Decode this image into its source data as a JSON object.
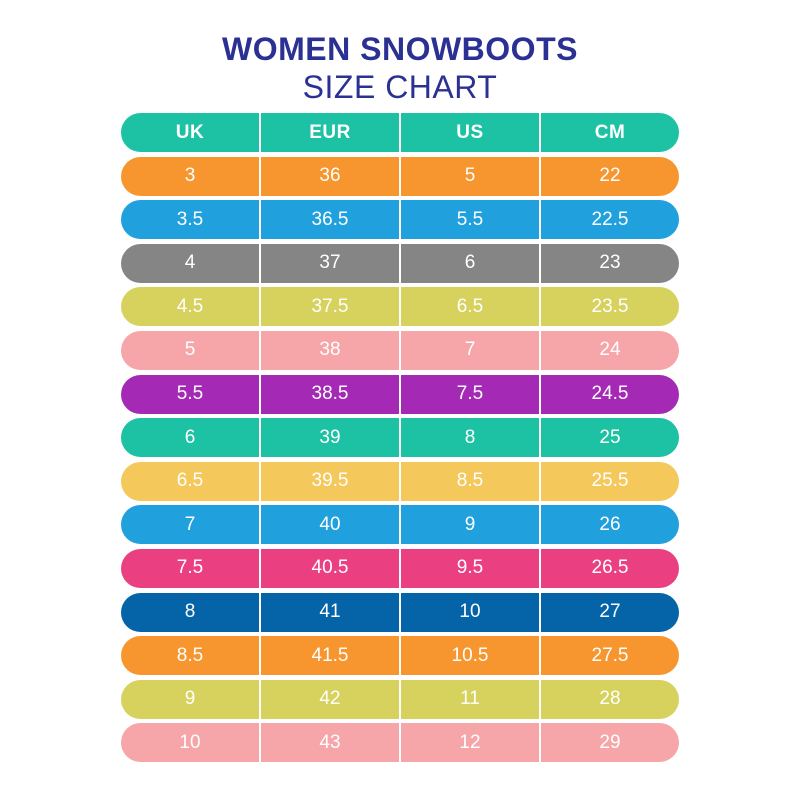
{
  "chart_data": {
    "type": "table",
    "title": "WOMEN SNOWBOOTS",
    "subtitle": "SIZE CHART",
    "columns": [
      "UK",
      "EUR",
      "US",
      "CM"
    ],
    "header_color": "#1dc1a3",
    "rows": [
      {
        "values": [
          "3",
          "36",
          "5",
          "22"
        ],
        "color": "#f7952f"
      },
      {
        "values": [
          "3.5",
          "36.5",
          "5.5",
          "22.5"
        ],
        "color": "#20a0dc"
      },
      {
        "values": [
          "4",
          "37",
          "6",
          "23"
        ],
        "color": "#858585"
      },
      {
        "values": [
          "4.5",
          "37.5",
          "6.5",
          "23.5"
        ],
        "color": "#d7d15e"
      },
      {
        "values": [
          "5",
          "38",
          "7",
          "24"
        ],
        "color": "#f6a5a9"
      },
      {
        "values": [
          "5.5",
          "38.5",
          "7.5",
          "24.5"
        ],
        "color": "#a42ab6"
      },
      {
        "values": [
          "6",
          "39",
          "8",
          "25"
        ],
        "color": "#1dc1a3"
      },
      {
        "values": [
          "6.5",
          "39.5",
          "8.5",
          "25.5"
        ],
        "color": "#f4c85a"
      },
      {
        "values": [
          "7",
          "40",
          "9",
          "26"
        ],
        "color": "#20a0dc"
      },
      {
        "values": [
          "7.5",
          "40.5",
          "9.5",
          "26.5"
        ],
        "color": "#ea4082"
      },
      {
        "values": [
          "8",
          "41",
          "10",
          "27"
        ],
        "color": "#0464a7"
      },
      {
        "values": [
          "8.5",
          "41.5",
          "10.5",
          "27.5"
        ],
        "color": "#f7952f"
      },
      {
        "values": [
          "9",
          "42",
          "11",
          "28"
        ],
        "color": "#d7d15e"
      },
      {
        "values": [
          "10",
          "43",
          "12",
          "29"
        ],
        "color": "#f6a5a9"
      }
    ]
  }
}
